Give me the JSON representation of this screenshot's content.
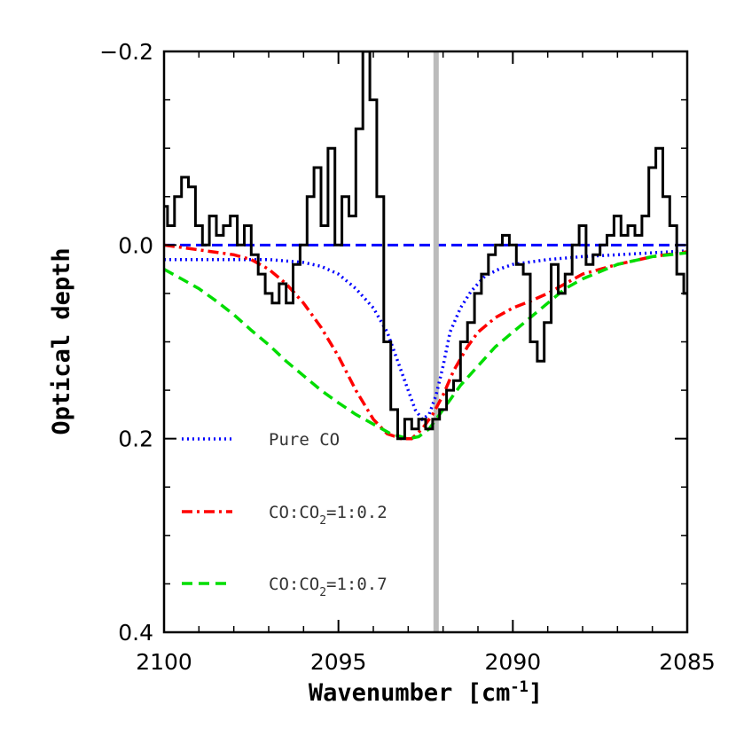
{
  "chart_data": {
    "type": "line",
    "title": "",
    "xlabel_main": "Wavenumber [cm",
    "xlabel_sup": "-1",
    "xlabel_end": "]",
    "ylabel": "Optical depth",
    "xlim": [
      2100,
      2085
    ],
    "ylim": [
      0.4,
      -0.2
    ],
    "x_ticks": [
      2100,
      2095,
      2090,
      2085
    ],
    "x_tick_labels": [
      "2100",
      "2095",
      "2090",
      "2085"
    ],
    "y_ticks": [
      -0.2,
      0.0,
      0.2,
      0.4
    ],
    "y_tick_labels": [
      "−0.2",
      "0.0",
      "0.2",
      "0.4"
    ],
    "vline_x": 2092.2,
    "zero_line": 0.0,
    "observed": {
      "x": [
        2100.0,
        2099.8,
        2099.6,
        2099.4,
        2099.2,
        2099.0,
        2098.8,
        2098.6,
        2098.4,
        2098.2,
        2098.0,
        2097.8,
        2097.6,
        2097.4,
        2097.2,
        2097.0,
        2096.8,
        2096.6,
        2096.4,
        2096.2,
        2096.0,
        2095.8,
        2095.6,
        2095.4,
        2095.2,
        2095.0,
        2094.8,
        2094.6,
        2094.4,
        2094.2,
        2094.0,
        2093.8,
        2093.6,
        2093.4,
        2093.2,
        2093.0,
        2092.8,
        2092.6,
        2092.4,
        2092.2,
        2092.0,
        2091.8,
        2091.6,
        2091.4,
        2091.2,
        2091.0,
        2090.8,
        2090.6,
        2090.4,
        2090.2,
        2090.0,
        2089.8,
        2089.6,
        2089.4,
        2089.2,
        2089.0,
        2088.8,
        2088.6,
        2088.4,
        2088.2,
        2088.0,
        2087.8,
        2087.6,
        2087.4,
        2087.2,
        2087.0,
        2086.8,
        2086.6,
        2086.4,
        2086.2,
        2086.0,
        2085.8,
        2085.6,
        2085.4,
        2085.2,
        2085.0
      ],
      "y": [
        -0.04,
        -0.02,
        -0.05,
        -0.07,
        -0.06,
        -0.02,
        0.0,
        -0.03,
        -0.01,
        -0.02,
        -0.03,
        0.0,
        -0.02,
        0.01,
        0.03,
        0.05,
        0.06,
        0.04,
        0.06,
        0.02,
        0.0,
        -0.05,
        -0.08,
        -0.02,
        -0.1,
        0.0,
        -0.05,
        -0.03,
        -0.12,
        -0.2,
        -0.15,
        -0.05,
        0.1,
        0.17,
        0.2,
        0.18,
        0.19,
        0.18,
        0.19,
        0.18,
        0.17,
        0.15,
        0.14,
        0.1,
        0.08,
        0.05,
        0.03,
        0.01,
        0.0,
        -0.01,
        0.0,
        0.02,
        0.03,
        0.1,
        0.12,
        0.08,
        0.02,
        0.05,
        0.03,
        0.0,
        -0.02,
        0.02,
        0.01,
        0.0,
        -0.01,
        -0.03,
        -0.01,
        -0.02,
        -0.01,
        -0.03,
        -0.08,
        -0.1,
        -0.05,
        -0.02,
        0.03,
        0.05
      ]
    },
    "series": [
      {
        "name": "Pure CO",
        "color": "#0000ff",
        "dash": "dotted",
        "x": [
          2100.0,
          2099.0,
          2098.0,
          2097.0,
          2096.0,
          2095.5,
          2095.0,
          2094.5,
          2094.0,
          2093.6,
          2093.3,
          2093.0,
          2092.8,
          2092.6,
          2092.4,
          2092.2,
          2092.0,
          2091.8,
          2091.5,
          2091.2,
          2090.8,
          2090.4,
          2090.0,
          2089.0,
          2088.0,
          2087.0,
          2086.0,
          2085.0
        ],
        "y": [
          0.015,
          0.015,
          0.015,
          0.015,
          0.018,
          0.022,
          0.03,
          0.045,
          0.065,
          0.09,
          0.12,
          0.15,
          0.17,
          0.18,
          0.175,
          0.155,
          0.125,
          0.09,
          0.065,
          0.048,
          0.032,
          0.025,
          0.02,
          0.015,
          0.012,
          0.01,
          0.008,
          0.006
        ]
      },
      {
        "name": "CO:CO2=1:0.2",
        "label_main": "CO:CO",
        "label_sub": "2",
        "label_end": "=1:0.2",
        "color": "#ff0000",
        "dash": "dashdot",
        "x": [
          2100.0,
          2099.0,
          2098.0,
          2097.5,
          2097.0,
          2096.5,
          2096.0,
          2095.5,
          2095.0,
          2094.5,
          2094.0,
          2093.6,
          2093.2,
          2092.9,
          2092.6,
          2092.3,
          2092.0,
          2091.7,
          2091.3,
          2091.0,
          2090.5,
          2090.0,
          2089.5,
          2089.0,
          2088.5,
          2088.0,
          2087.0,
          2086.0,
          2085.0
        ],
        "y": [
          0.0,
          0.005,
          0.01,
          0.015,
          0.025,
          0.04,
          0.06,
          0.085,
          0.115,
          0.15,
          0.18,
          0.195,
          0.2,
          0.2,
          0.19,
          0.175,
          0.155,
          0.13,
          0.105,
          0.09,
          0.075,
          0.065,
          0.058,
          0.05,
          0.04,
          0.03,
          0.02,
          0.012,
          0.007
        ]
      },
      {
        "name": "CO:CO2=1:0.7",
        "label_main": "CO:CO",
        "label_sub": "2",
        "label_end": "=1:0.7",
        "color": "#00dd00",
        "dash": "dashed",
        "x": [
          2100.0,
          2099.5,
          2099.0,
          2098.5,
          2098.0,
          2097.5,
          2097.0,
          2096.5,
          2096.0,
          2095.5,
          2095.0,
          2094.5,
          2094.0,
          2093.5,
          2093.0,
          2092.7,
          2092.4,
          2092.1,
          2091.8,
          2091.5,
          2091.0,
          2090.5,
          2090.0,
          2089.5,
          2089.0,
          2088.5,
          2088.0,
          2087.0,
          2086.0,
          2085.0
        ],
        "y": [
          0.025,
          0.035,
          0.045,
          0.058,
          0.072,
          0.088,
          0.103,
          0.12,
          0.135,
          0.15,
          0.163,
          0.175,
          0.185,
          0.195,
          0.2,
          0.198,
          0.19,
          0.175,
          0.16,
          0.145,
          0.125,
          0.105,
          0.09,
          0.075,
          0.06,
          0.045,
          0.035,
          0.02,
          0.012,
          0.008
        ]
      }
    ],
    "legend_position": "lower-left",
    "colors": {
      "observed": "#000000",
      "vline": "#bbbbbb",
      "zero_line": "#0000ff"
    }
  }
}
